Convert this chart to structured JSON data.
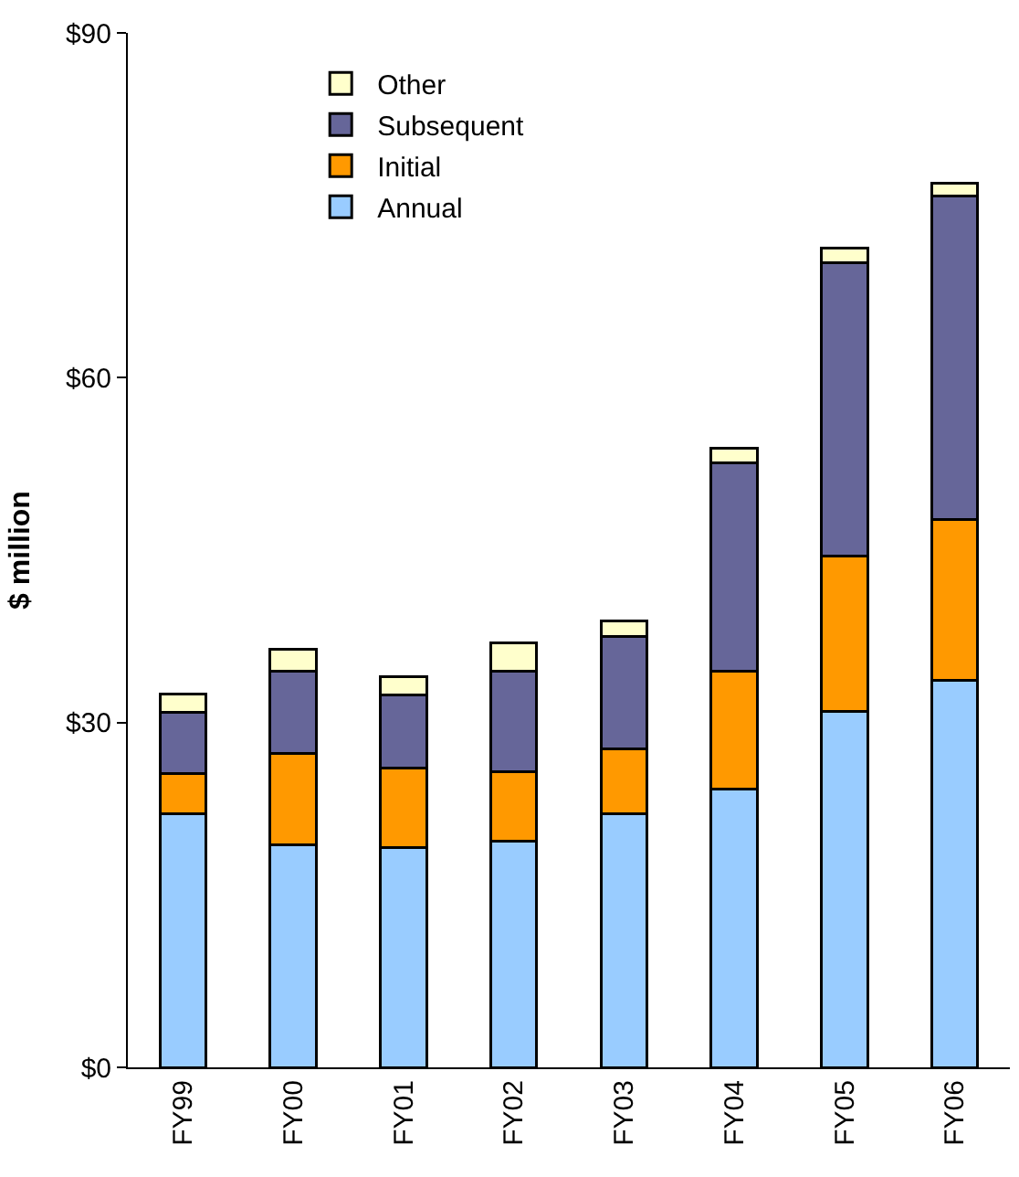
{
  "chart_data": {
    "type": "bar",
    "stacked": true,
    "ylabel": "$ million",
    "categories": [
      "FY99",
      "FY00",
      "FY01",
      "FY02",
      "FY03",
      "FY04",
      "FY05",
      "FY06"
    ],
    "series": [
      {
        "name": "Annual",
        "color": "#99ccff",
        "values": [
          22.1,
          19.4,
          19.1,
          19.7,
          22.1,
          24.2,
          31.0,
          33.7
        ]
      },
      {
        "name": "Initial",
        "color": "#ff9900",
        "values": [
          3.5,
          7.9,
          6.9,
          6.0,
          5.6,
          10.3,
          13.5,
          14.0
        ]
      },
      {
        "name": "Subsequent",
        "color": "#666699",
        "values": [
          5.3,
          7.2,
          6.4,
          8.8,
          9.8,
          18.1,
          25.5,
          28.1
        ]
      },
      {
        "name": "Other",
        "color": "#ffffcc",
        "values": [
          1.6,
          1.9,
          1.6,
          2.4,
          1.3,
          1.3,
          1.3,
          1.1
        ]
      }
    ],
    "ylim": [
      0,
      90
    ],
    "yticks": [
      {
        "value": 0,
        "label": "$0"
      },
      {
        "value": 30,
        "label": "$30"
      },
      {
        "value": 60,
        "label": "$60"
      },
      {
        "value": 90,
        "label": "$90"
      }
    ],
    "legend": "top left"
  }
}
